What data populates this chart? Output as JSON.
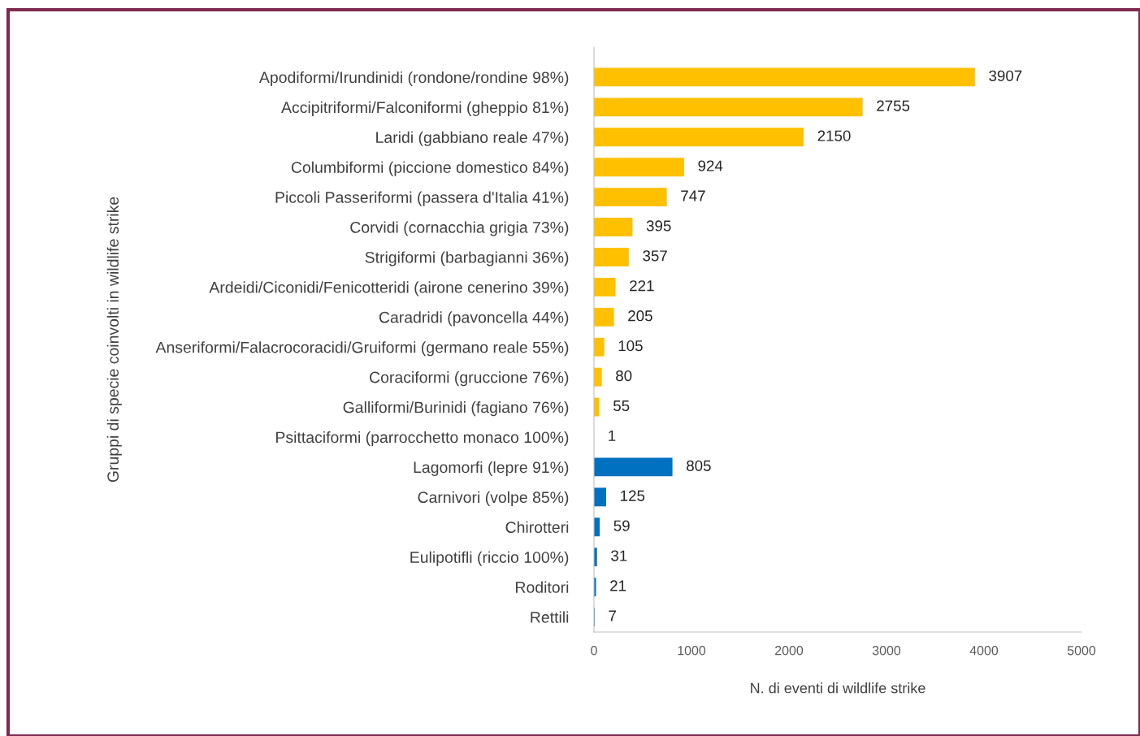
{
  "chart_data": {
    "type": "bar",
    "orientation": "horizontal",
    "ylabel": "Gruppi di specie coinvolti in wildlife strike",
    "xlabel": "N. di eventi di wildlife strike",
    "categories": [
      "Apodiformi/Irundinidi (rondone/rondine 98%)",
      "Accipitriformi/Falconiformi (gheppio 81%)",
      "Laridi (gabbiano reale 47%)",
      "Columbiformi (piccione domestico 84%)",
      "Piccoli Passeriformi (passera d'Italia 41%)",
      "Corvidi (cornacchia grigia 73%)",
      "Strigiformi (barbagianni 36%)",
      "Ardeidi/Ciconidi/Fenicotteridi (airone cenerino 39%)",
      "Caradridi (pavoncella 44%)",
      "Anseriformi/Falacrocoracidi/Gruiformi (germano reale 55%)",
      "Coraciformi (gruccione 76%)",
      "Galliformi/Burinidi (fagiano 76%)",
      "Psittaciformi (parrocchetto monaco 100%)",
      "Lagomorfi (lepre 91%)",
      "Carnivori (volpe 85%)",
      "Chirotteri",
      "Eulipotifli (riccio 100%)",
      "Roditori",
      "Rettili"
    ],
    "values": [
      3907,
      2755,
      2150,
      924,
      747,
      395,
      357,
      221,
      205,
      105,
      80,
      55,
      1,
      805,
      125,
      59,
      31,
      21,
      7
    ],
    "colors": [
      "#ffc000",
      "#ffc000",
      "#ffc000",
      "#ffc000",
      "#ffc000",
      "#ffc000",
      "#ffc000",
      "#ffc000",
      "#ffc000",
      "#ffc000",
      "#ffc000",
      "#ffc000",
      "#ffc000",
      "#0070c0",
      "#0070c0",
      "#0070c0",
      "#0070c0",
      "#0070c0",
      "#0070c0"
    ],
    "xlim": [
      0,
      5000
    ],
    "xticks": [
      0,
      1000,
      2000,
      3000,
      4000,
      5000
    ],
    "data_labels": true,
    "grid": false,
    "legend": false
  }
}
